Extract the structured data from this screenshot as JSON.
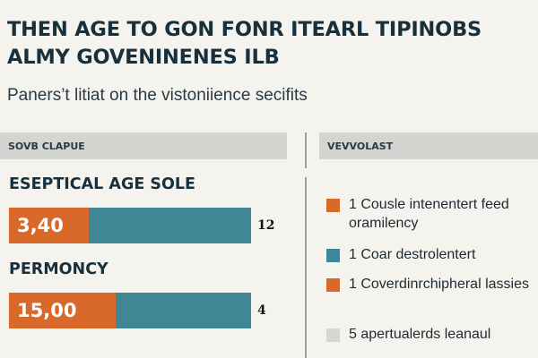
{
  "title_lines": [
    "THEN AGE TO GON FONR ITEARL TIPINOBS",
    "ALMY GOVENINENES ILB"
  ],
  "subtitle": "Paners’t litiat on the vistoniience secifits",
  "left_header": "SOVB CLAPUE",
  "right_header": "VEVVOLAST",
  "colors": {
    "orange": "#d9682b",
    "teal": "#3f8795",
    "light_gray": "#d6d6d2",
    "background": "#f4f3ee"
  },
  "chart_data": {
    "type": "bar",
    "orientation": "horizontal",
    "bars": [
      {
        "label": "ESEPTICAL AGE SOLE",
        "value_label": "3,40",
        "side_label": "12",
        "fill_fraction": 0.33
      },
      {
        "label": "PERMONCY",
        "value_label": "15,00",
        "side_label": "4",
        "fill_fraction": 0.44
      }
    ],
    "legend": [
      {
        "text": "1 Cousle intenentert feed oramilency",
        "color": "#d9682b"
      },
      {
        "text": "1 Coar destrolentert",
        "color": "#3f8795"
      },
      {
        "text": "1 Coverdinrchipheral lassies",
        "color": "#d9682b"
      },
      {
        "text": "5 apertualerds leanaul",
        "color": "#d6d6d2"
      }
    ]
  }
}
